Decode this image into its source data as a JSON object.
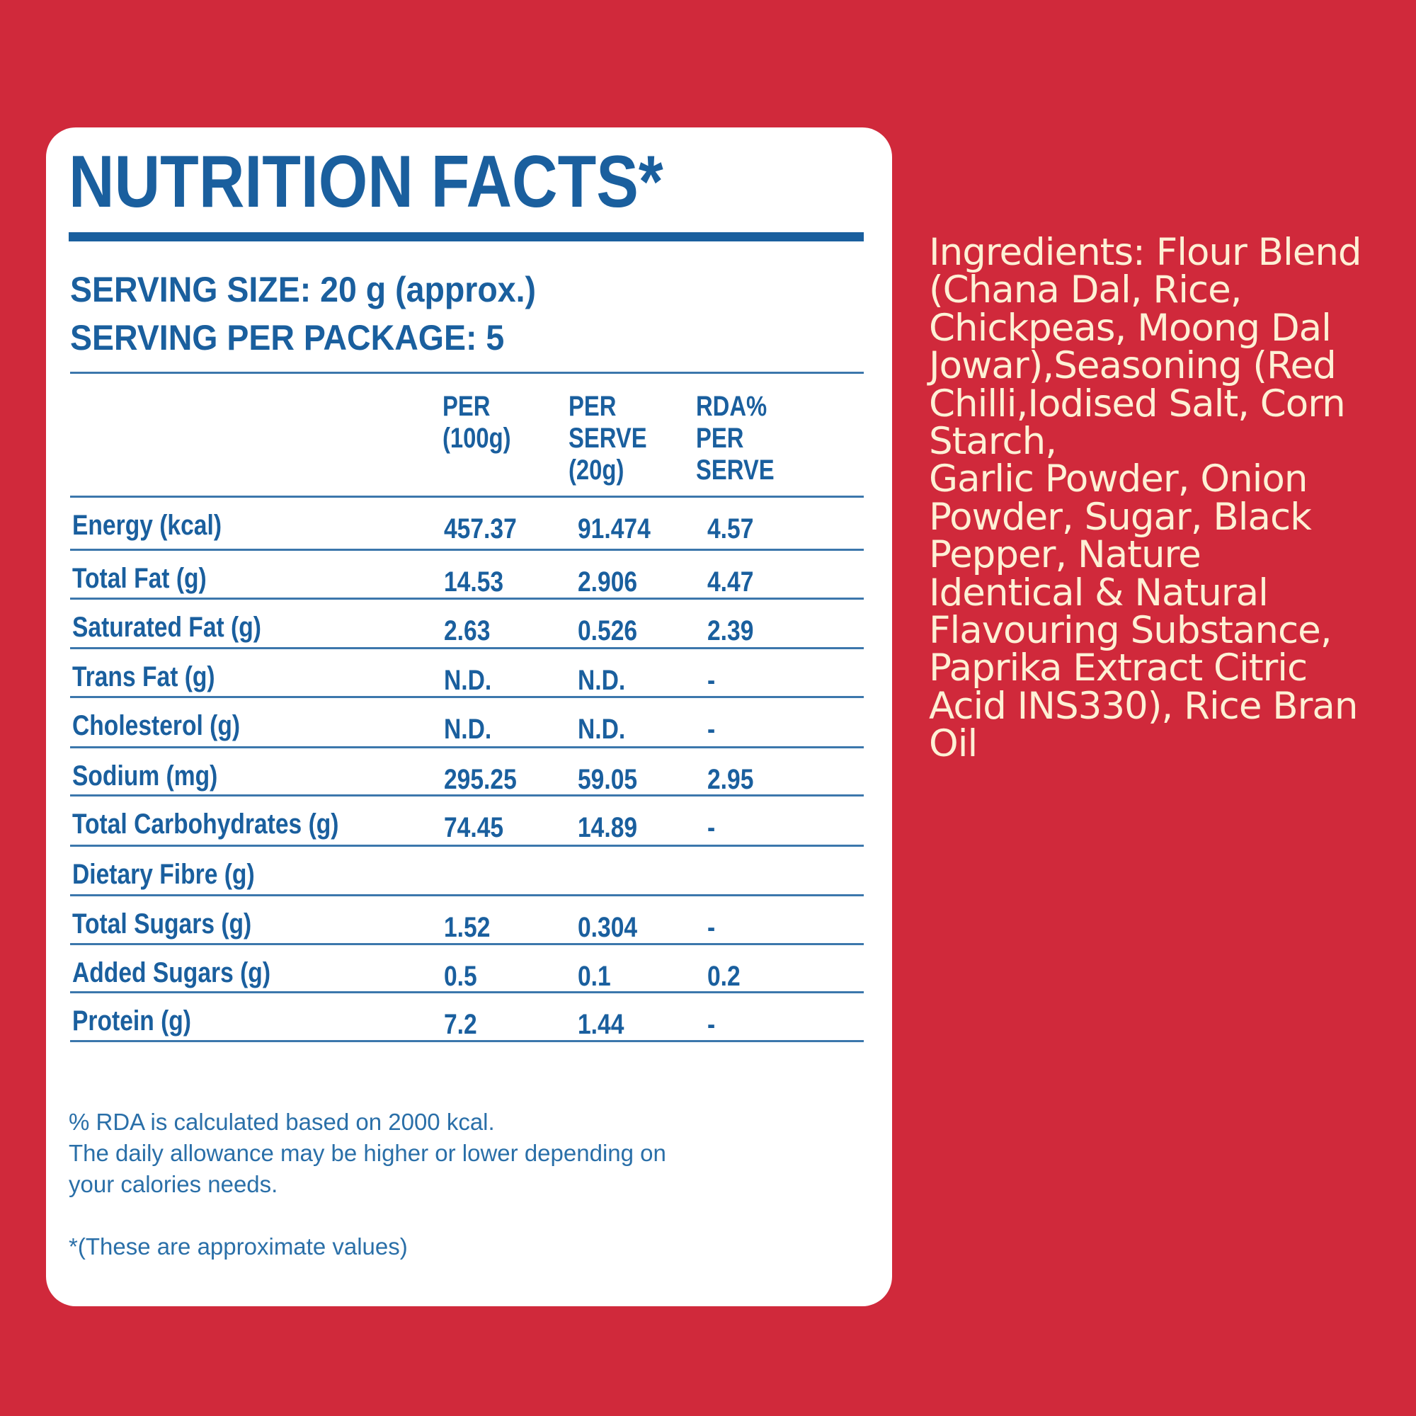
{
  "colors": {
    "background": "#d0293b",
    "label_blue": "#1a5f9e",
    "card": "#ffffff",
    "ingredients_text": "#fdf0d5"
  },
  "label": {
    "title": "NUTRITION FACTS*",
    "serving_size": "SERVING SIZE: 20 g (approx.)",
    "servings_per_package": "SERVING PER PACKAGE: 5",
    "columns": [
      [
        "PER",
        "(100g)"
      ],
      [
        "PER",
        "SERVE",
        "(20g)"
      ],
      [
        "RDA%",
        "PER",
        "SERVE"
      ]
    ],
    "rows": [
      {
        "name": "Energy (kcal)",
        "per100": "457.37",
        "perServe": "91.474",
        "rda": "4.57"
      },
      {
        "name": "Total Fat (g)",
        "per100": "14.53",
        "perServe": "2.906",
        "rda": "4.47"
      },
      {
        "name": "Saturated Fat (g)",
        "per100": "2.63",
        "perServe": "0.526",
        "rda": "2.39"
      },
      {
        "name": "Trans Fat (g)",
        "per100": "N.D.",
        "perServe": "N.D.",
        "rda": "-"
      },
      {
        "name": "Cholesterol (g)",
        "per100": "N.D.",
        "perServe": "N.D.",
        "rda": "-"
      },
      {
        "name": "Sodium (mg)",
        "per100": "295.25",
        "perServe": "59.05",
        "rda": "2.95"
      },
      {
        "name": "Total Carbohydrates (g)",
        "per100": "74.45",
        "perServe": "14.89",
        "rda": "-"
      },
      {
        "name": "Dietary Fibre (g)",
        "per100": "",
        "perServe": "",
        "rda": ""
      },
      {
        "name": "Total Sugars (g)",
        "per100": "1.52",
        "perServe": "0.304",
        "rda": "-"
      },
      {
        "name": "Added Sugars (g)",
        "per100": "0.5",
        "perServe": "0.1",
        "rda": "0.2"
      },
      {
        "name": "Protein (g)",
        "per100": "7.2",
        "perServe": "1.44",
        "rda": "-"
      }
    ],
    "footnote_lines": [
      "% RDA is calculated based on 2000 kcal.",
      "The daily allowance may be higher or lower depending on",
      "your calories needs."
    ],
    "approx_note": "*(These are approximate values)"
  },
  "ingredients": "Ingredients: Flour Blend\n(Chana Dal, Rice,\nChickpeas, Moong Dal\nJowar),Seasoning (Red\nChilli,Iodised Salt, Corn\nStarch,\nGarlic Powder, Onion\nPowder, Sugar, Black\nPepper, Nature\nIdentical & Natural\nFlavouring Substance,\nPaprika Extract Citric\nAcid INS330), Rice Bran\nOil"
}
